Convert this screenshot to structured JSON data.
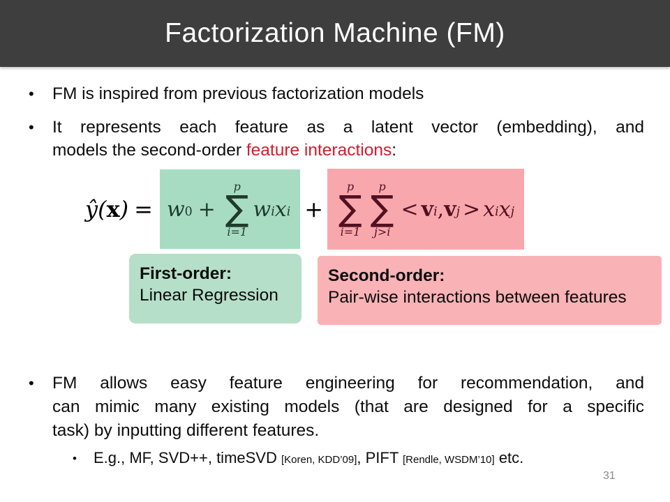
{
  "colors": {
    "header_bg": "#3e3e3e",
    "title_text": "#ffffff",
    "body_text": "#0d0d0d",
    "accent_red": "#d21c2c",
    "green_highlight": "#a8dcc2",
    "pink_highlight": "#f8a8ad",
    "green_label_bg": "#b5dfc8",
    "pink_label_bg": "#f9b2b6",
    "green_formula_text": "#1d3b2d",
    "pink_formula_text": "#521020",
    "page_number_gray": "#8b8b8b"
  },
  "header": {
    "title": "Factorization Machine (FM)"
  },
  "bullets": {
    "marker": "•",
    "b1": "FM is inspired from previous factorization models",
    "b2_line1": "It represents each feature as a latent vector (embedding), and",
    "b2_line2_prefix": "models the second-order ",
    "b2_line2_red": "feature interactions",
    "b2_line2_suffix": ":",
    "b3_line1": "FM allows easy feature engineering for recommendation, and",
    "b3_line2": "can mimic many existing models (that are designed for a specific",
    "b3_line3": "task) by inputting different features.",
    "sub_part1": "E.g., MF, SVD++, timeSVD ",
    "sub_cite1": "[Koren, KDD’09]",
    "sub_part2": ", PIFT ",
    "sub_cite2": "[Rendle, WSDM’10]",
    "sub_part3": " etc."
  },
  "formula": {
    "lhs": {
      "yhat": "ŷ",
      "open": "(",
      "x": "x",
      "close": ")",
      "eq": "="
    },
    "first_order": {
      "w": "w",
      "w_sub": "0",
      "plus": "+",
      "sum_top": "p",
      "sum": "∑",
      "sum_bot": "i=1",
      "wi": "w",
      "wi_sub": "i",
      "xi": "x",
      "xi_sub": "i"
    },
    "mid_plus": "+",
    "second_order": {
      "sum1_top": "p",
      "sum1": "∑",
      "sum1_bot": "i=1",
      "sum2_top": "p",
      "sum2": "∑",
      "sum2_bot": "j>i",
      "lt": "<",
      "vi": "v",
      "vi_sub": "i",
      "comma": ",",
      "vj": "v",
      "vj_sub": "j",
      "gt": ">",
      "xi": "x",
      "xi_sub": "i",
      "xj": "x",
      "xj_sub": "j"
    }
  },
  "labels": {
    "first_order_title": "First-order:",
    "first_order_desc": "Linear Regression",
    "second_order_title": "Second-order:",
    "second_order_desc": "Pair-wise interactions between features"
  },
  "footer": {
    "page_number": "31"
  }
}
